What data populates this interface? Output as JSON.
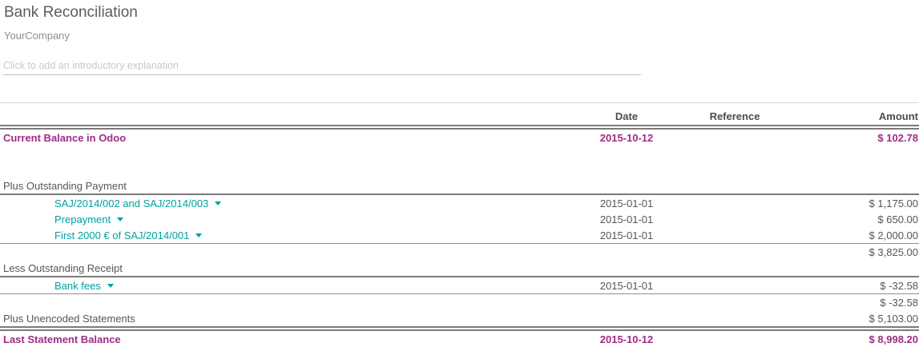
{
  "report": {
    "title": "Bank Reconciliation",
    "company": "YourCompany",
    "intro_placeholder": "Click to add an introductory explanation"
  },
  "colors": {
    "accent_magenta": "#a02c85",
    "link_teal": "#00a09d",
    "body_text": "#55565a",
    "line_gray": "#7b7b7b"
  },
  "table": {
    "headers": {
      "date": "Date",
      "reference": "Reference",
      "amount": "Amount"
    },
    "rows": [
      {
        "type": "total",
        "label": "Current Balance in Odoo",
        "date": "2015-10-12",
        "reference": "",
        "amount": "$ 102.78"
      },
      {
        "type": "spacer"
      },
      {
        "type": "section",
        "label": "Plus Outstanding Payment",
        "date": "",
        "reference": "",
        "amount": ""
      },
      {
        "type": "link",
        "label": "SAJ/2014/002 and SAJ/2014/003",
        "date": "2015-01-01",
        "reference": "",
        "amount": "$ 1,175.00"
      },
      {
        "type": "link",
        "label": "Prepayment",
        "date": "2015-01-01",
        "reference": "",
        "amount": "$ 650.00"
      },
      {
        "type": "link",
        "label": "First 2000 € of SAJ/2014/001",
        "date": "2015-01-01",
        "reference": "",
        "amount": "$ 2,000.00"
      },
      {
        "type": "subtotal",
        "label": "",
        "date": "",
        "reference": "",
        "amount": "$ 3,825.00"
      },
      {
        "type": "section",
        "label": "Less Outstanding Receipt",
        "date": "",
        "reference": "",
        "amount": ""
      },
      {
        "type": "link",
        "label": "Bank fees",
        "date": "2015-01-01",
        "reference": "",
        "amount": "$ -32.58"
      },
      {
        "type": "subtotal",
        "label": "",
        "date": "",
        "reference": "",
        "amount": "$ -32.58"
      },
      {
        "type": "section_amount",
        "label": "Plus Unencoded Statements",
        "date": "",
        "reference": "",
        "amount": "$ 5,103.00"
      },
      {
        "type": "total_grand",
        "label": "Last Statement Balance",
        "date": "2015-10-12",
        "reference": "",
        "amount": "$ 8,998.20"
      }
    ]
  }
}
